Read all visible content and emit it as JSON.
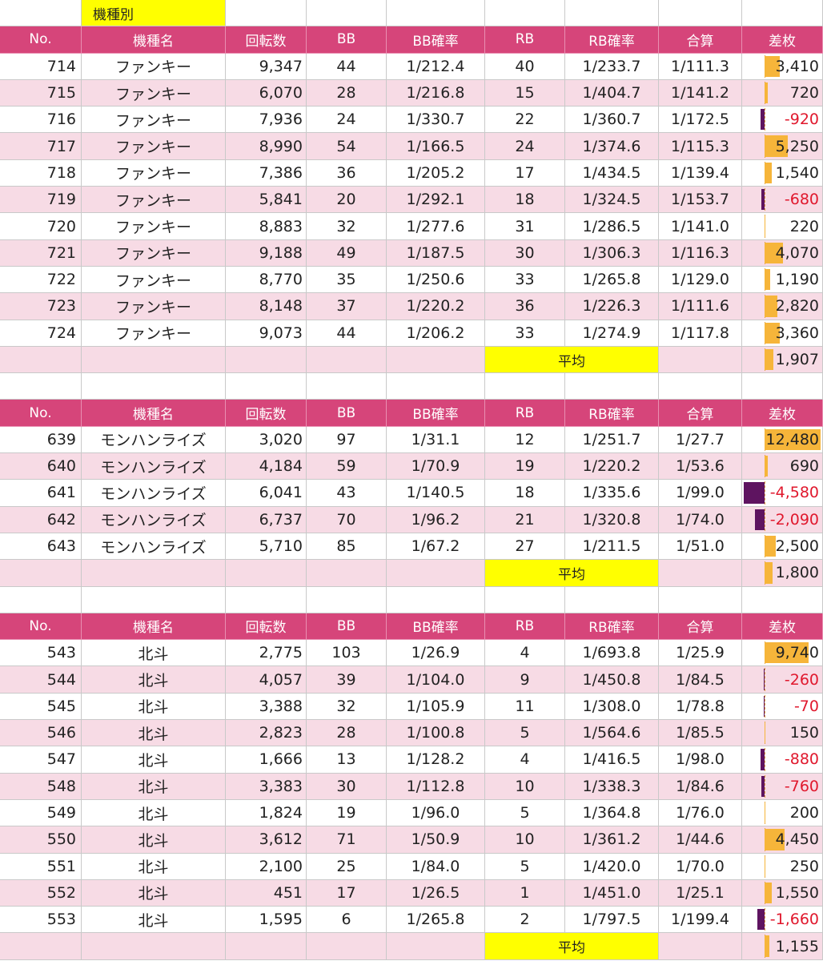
{
  "title": "機種別",
  "headers": [
    "No.",
    "機種名",
    "回転数",
    "BB",
    "BB確率",
    "RB",
    "RB確率",
    "合算",
    "差枚"
  ],
  "avg_label": "平均",
  "colors": {
    "header_bg": "#d6457a",
    "stripe": "#f7dbe5",
    "highlight": "#ffff00",
    "positive_bar": "#f6b53a",
    "negative_bar": "#5e1460",
    "negative_text": "#e0182d"
  },
  "groups": [
    {
      "rows": [
        {
          "no": "714",
          "name": "ファンキー",
          "spins": "9,347",
          "bb": "44",
          "bb_rate": "1/212.4",
          "rb": "40",
          "rb_rate": "1/233.7",
          "total": "1/111.3",
          "diff": "3,410",
          "diff_value": 3410
        },
        {
          "no": "715",
          "name": "ファンキー",
          "spins": "6,070",
          "bb": "28",
          "bb_rate": "1/216.8",
          "rb": "15",
          "rb_rate": "1/404.7",
          "total": "1/141.2",
          "diff": "720",
          "diff_value": 720
        },
        {
          "no": "716",
          "name": "ファンキー",
          "spins": "7,936",
          "bb": "24",
          "bb_rate": "1/330.7",
          "rb": "22",
          "rb_rate": "1/360.7",
          "total": "1/172.5",
          "diff": "-920",
          "diff_value": -920
        },
        {
          "no": "717",
          "name": "ファンキー",
          "spins": "8,990",
          "bb": "54",
          "bb_rate": "1/166.5",
          "rb": "24",
          "rb_rate": "1/374.6",
          "total": "1/115.3",
          "diff": "5,250",
          "diff_value": 5250
        },
        {
          "no": "718",
          "name": "ファンキー",
          "spins": "7,386",
          "bb": "36",
          "bb_rate": "1/205.2",
          "rb": "17",
          "rb_rate": "1/434.5",
          "total": "1/139.4",
          "diff": "1,540",
          "diff_value": 1540
        },
        {
          "no": "719",
          "name": "ファンキー",
          "spins": "5,841",
          "bb": "20",
          "bb_rate": "1/292.1",
          "rb": "18",
          "rb_rate": "1/324.5",
          "total": "1/153.7",
          "diff": "-680",
          "diff_value": -680
        },
        {
          "no": "720",
          "name": "ファンキー",
          "spins": "8,883",
          "bb": "32",
          "bb_rate": "1/277.6",
          "rb": "31",
          "rb_rate": "1/286.5",
          "total": "1/141.0",
          "diff": "220",
          "diff_value": 220
        },
        {
          "no": "721",
          "name": "ファンキー",
          "spins": "9,188",
          "bb": "49",
          "bb_rate": "1/187.5",
          "rb": "30",
          "rb_rate": "1/306.3",
          "total": "1/116.3",
          "diff": "4,070",
          "diff_value": 4070
        },
        {
          "no": "722",
          "name": "ファンキー",
          "spins": "8,770",
          "bb": "35",
          "bb_rate": "1/250.6",
          "rb": "33",
          "rb_rate": "1/265.8",
          "total": "1/129.0",
          "diff": "1,190",
          "diff_value": 1190
        },
        {
          "no": "723",
          "name": "ファンキー",
          "spins": "8,148",
          "bb": "37",
          "bb_rate": "1/220.2",
          "rb": "36",
          "rb_rate": "1/226.3",
          "total": "1/111.6",
          "diff": "2,820",
          "diff_value": 2820
        },
        {
          "no": "724",
          "name": "ファンキー",
          "spins": "9,073",
          "bb": "44",
          "bb_rate": "1/206.2",
          "rb": "33",
          "rb_rate": "1/274.9",
          "total": "1/117.8",
          "diff": "3,360",
          "diff_value": 3360
        }
      ],
      "avg": {
        "diff": "1,907",
        "diff_value": 1907
      }
    },
    {
      "rows": [
        {
          "no": "639",
          "name": "モンハンライズ",
          "spins": "3,020",
          "bb": "97",
          "bb_rate": "1/31.1",
          "rb": "12",
          "rb_rate": "1/251.7",
          "total": "1/27.7",
          "diff": "12,480",
          "diff_value": 12480
        },
        {
          "no": "640",
          "name": "モンハンライズ",
          "spins": "4,184",
          "bb": "59",
          "bb_rate": "1/70.9",
          "rb": "19",
          "rb_rate": "1/220.2",
          "total": "1/53.6",
          "diff": "690",
          "diff_value": 690
        },
        {
          "no": "641",
          "name": "モンハンライズ",
          "spins": "6,041",
          "bb": "43",
          "bb_rate": "1/140.5",
          "rb": "18",
          "rb_rate": "1/335.6",
          "total": "1/99.0",
          "diff": "-4,580",
          "diff_value": -4580
        },
        {
          "no": "642",
          "name": "モンハンライズ",
          "spins": "6,737",
          "bb": "70",
          "bb_rate": "1/96.2",
          "rb": "21",
          "rb_rate": "1/320.8",
          "total": "1/74.0",
          "diff": "-2,090",
          "diff_value": -2090
        },
        {
          "no": "643",
          "name": "モンハンライズ",
          "spins": "5,710",
          "bb": "85",
          "bb_rate": "1/67.2",
          "rb": "27",
          "rb_rate": "1/211.5",
          "total": "1/51.0",
          "diff": "2,500",
          "diff_value": 2500
        }
      ],
      "avg": {
        "diff": "1,800",
        "diff_value": 1800
      }
    },
    {
      "rows": [
        {
          "no": "543",
          "name": "北斗",
          "spins": "2,775",
          "bb": "103",
          "bb_rate": "1/26.9",
          "rb": "4",
          "rb_rate": "1/693.8",
          "total": "1/25.9",
          "diff": "9,740",
          "diff_value": 9740
        },
        {
          "no": "544",
          "name": "北斗",
          "spins": "4,057",
          "bb": "39",
          "bb_rate": "1/104.0",
          "rb": "9",
          "rb_rate": "1/450.8",
          "total": "1/84.5",
          "diff": "-260",
          "diff_value": -260
        },
        {
          "no": "545",
          "name": "北斗",
          "spins": "3,388",
          "bb": "32",
          "bb_rate": "1/105.9",
          "rb": "11",
          "rb_rate": "1/308.0",
          "total": "1/78.8",
          "diff": "-70",
          "diff_value": -70
        },
        {
          "no": "546",
          "name": "北斗",
          "spins": "2,823",
          "bb": "28",
          "bb_rate": "1/100.8",
          "rb": "5",
          "rb_rate": "1/564.6",
          "total": "1/85.5",
          "diff": "150",
          "diff_value": 150
        },
        {
          "no": "547",
          "name": "北斗",
          "spins": "1,666",
          "bb": "13",
          "bb_rate": "1/128.2",
          "rb": "4",
          "rb_rate": "1/416.5",
          "total": "1/98.0",
          "diff": "-880",
          "diff_value": -880
        },
        {
          "no": "548",
          "name": "北斗",
          "spins": "3,383",
          "bb": "30",
          "bb_rate": "1/112.8",
          "rb": "10",
          "rb_rate": "1/338.3",
          "total": "1/84.6",
          "diff": "-760",
          "diff_value": -760
        },
        {
          "no": "549",
          "name": "北斗",
          "spins": "1,824",
          "bb": "19",
          "bb_rate": "1/96.0",
          "rb": "5",
          "rb_rate": "1/364.8",
          "total": "1/76.0",
          "diff": "200",
          "diff_value": 200
        },
        {
          "no": "550",
          "name": "北斗",
          "spins": "3,612",
          "bb": "71",
          "bb_rate": "1/50.9",
          "rb": "10",
          "rb_rate": "1/361.2",
          "total": "1/44.6",
          "diff": "4,450",
          "diff_value": 4450
        },
        {
          "no": "551",
          "name": "北斗",
          "spins": "2,100",
          "bb": "25",
          "bb_rate": "1/84.0",
          "rb": "5",
          "rb_rate": "1/420.0",
          "total": "1/70.0",
          "diff": "250",
          "diff_value": 250
        },
        {
          "no": "552",
          "name": "北斗",
          "spins": "451",
          "bb": "17",
          "bb_rate": "1/26.5",
          "rb": "1",
          "rb_rate": "1/451.0",
          "total": "1/25.1",
          "diff": "1,550",
          "diff_value": 1550
        },
        {
          "no": "553",
          "name": "北斗",
          "spins": "1,595",
          "bb": "6",
          "bb_rate": "1/265.8",
          "rb": "2",
          "rb_rate": "1/797.5",
          "total": "1/199.4",
          "diff": "-1,660",
          "diff_value": -1660
        }
      ],
      "avg": {
        "diff": "1,155",
        "diff_value": 1155
      }
    }
  ]
}
